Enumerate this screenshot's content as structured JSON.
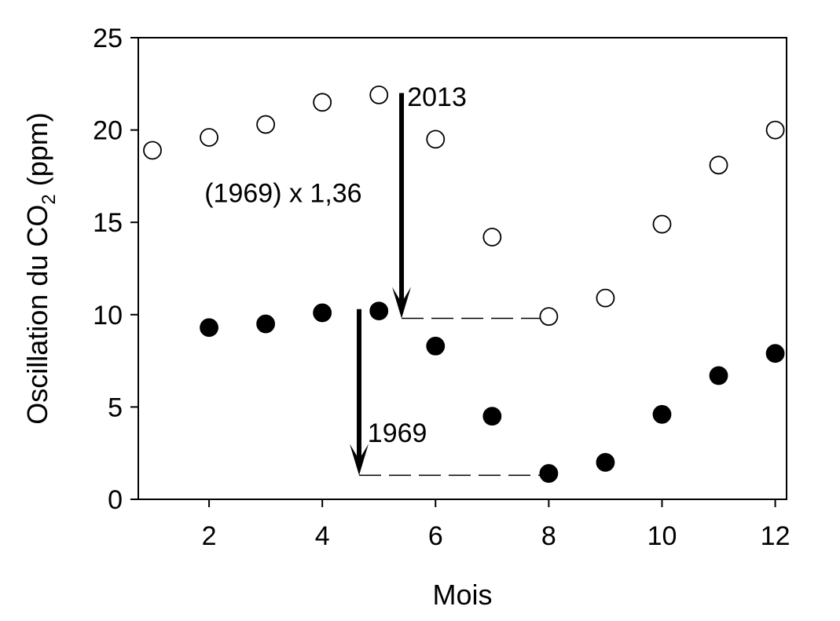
{
  "chart_data": {
    "type": "scatter",
    "xlabel": "Mois",
    "ylabel": {
      "main": "Oscillation du CO",
      "subscript": "2",
      "suffix": " (ppm)"
    },
    "xlim": [
      0.75,
      12.2
    ],
    "ylim": [
      0,
      25
    ],
    "xticks": [
      2,
      4,
      6,
      8,
      10,
      12
    ],
    "yticks": [
      0,
      5,
      10,
      15,
      20,
      25
    ],
    "grid": false,
    "series": [
      {
        "name": "2013",
        "marker": "open-circle",
        "x": [
          1,
          2,
          3,
          4,
          5,
          6,
          7,
          8,
          9,
          10,
          11,
          12
        ],
        "y": [
          18.9,
          19.6,
          20.3,
          21.5,
          21.9,
          19.5,
          14.2,
          9.9,
          10.9,
          14.9,
          18.1,
          20.0
        ]
      },
      {
        "name": "1969",
        "marker": "filled-circle",
        "x": [
          2,
          3,
          4,
          5,
          6,
          7,
          8,
          9,
          10,
          11,
          12
        ],
        "y": [
          9.3,
          9.5,
          10.1,
          10.2,
          8.3,
          4.5,
          1.4,
          2.0,
          4.6,
          6.7,
          7.9
        ]
      }
    ],
    "annotations": [
      {
        "text": "2013",
        "x": 5.5,
        "y": 21.3
      },
      {
        "text": "(1969) x 1,36",
        "x": 4.7,
        "y": 16.1
      },
      {
        "text": "1969",
        "x": 4.8,
        "y": 3.1
      }
    ],
    "arrows": [
      {
        "x": 5.4,
        "y_from": 22.0,
        "y_to": 9.8
      },
      {
        "x": 4.65,
        "y_from": 10.3,
        "y_to": 1.3
      }
    ],
    "dashed_lines": [
      {
        "x_from": 5.4,
        "x_to": 8.0,
        "y": 9.8
      },
      {
        "x_from": 4.65,
        "x_to": 8.0,
        "y": 1.3
      }
    ]
  }
}
